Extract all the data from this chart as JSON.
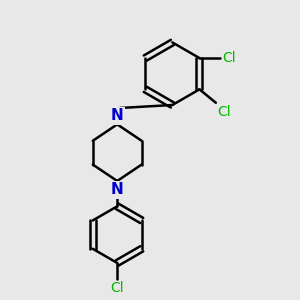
{
  "bg_color": "#e8e8e8",
  "bond_color": "#000000",
  "N_color": "#0000cc",
  "Cl_color": "#00bb00",
  "bond_width": 1.8,
  "font_size": 10,
  "fig_size": [
    3.0,
    3.0
  ],
  "dpi": 100,
  "cl1_label": "Cl",
  "cl2_label": "Cl",
  "cl3_label": "Cl"
}
